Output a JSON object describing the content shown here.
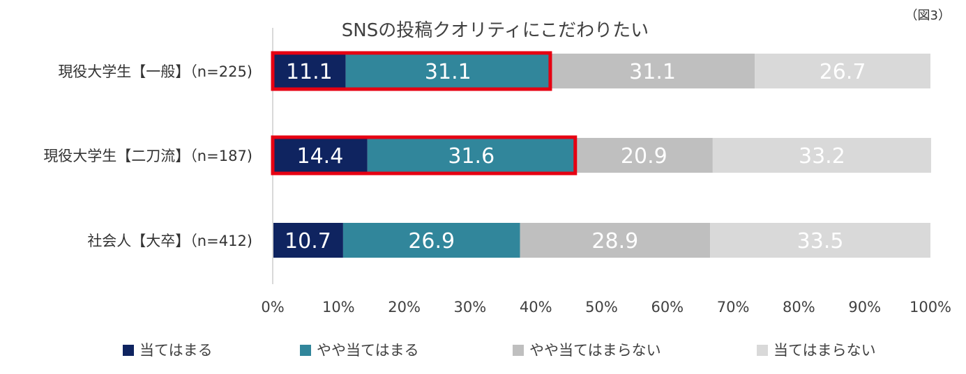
{
  "figure_label": "（図3）",
  "chart_data": {
    "type": "bar",
    "orientation": "horizontal",
    "stacked": true,
    "percent": true,
    "title": "SNSの投稿クオリティにこだわりたい",
    "categories": [
      "現役大学生【一般】（n=225)",
      "現役大学生【二刀流】（n=187)",
      "社会人【大卒】（n=412)"
    ],
    "series": [
      {
        "name": "当てはまる",
        "color": "#0f2460",
        "values": [
          11.1,
          14.4,
          10.7
        ]
      },
      {
        "name": "やや当てはまる",
        "color": "#31869b",
        "values": [
          31.1,
          31.6,
          26.9
        ]
      },
      {
        "name": "やや当てはまらない",
        "color": "#bfbfbf",
        "values": [
          31.1,
          20.9,
          28.9
        ]
      },
      {
        "name": "当てはまらない",
        "color": "#d9d9d9",
        "values": [
          26.7,
          33.2,
          33.5
        ]
      }
    ],
    "xlim": [
      0,
      100
    ],
    "x_ticks": [
      "0%",
      "10%",
      "20%",
      "30%",
      "40%",
      "50%",
      "60%",
      "70%",
      "80%",
      "90%",
      "100%"
    ],
    "highlight": {
      "color": "#e60012",
      "categories": [
        0,
        1
      ],
      "series": [
        0,
        1
      ]
    },
    "grid": false,
    "legend_position": "bottom"
  }
}
